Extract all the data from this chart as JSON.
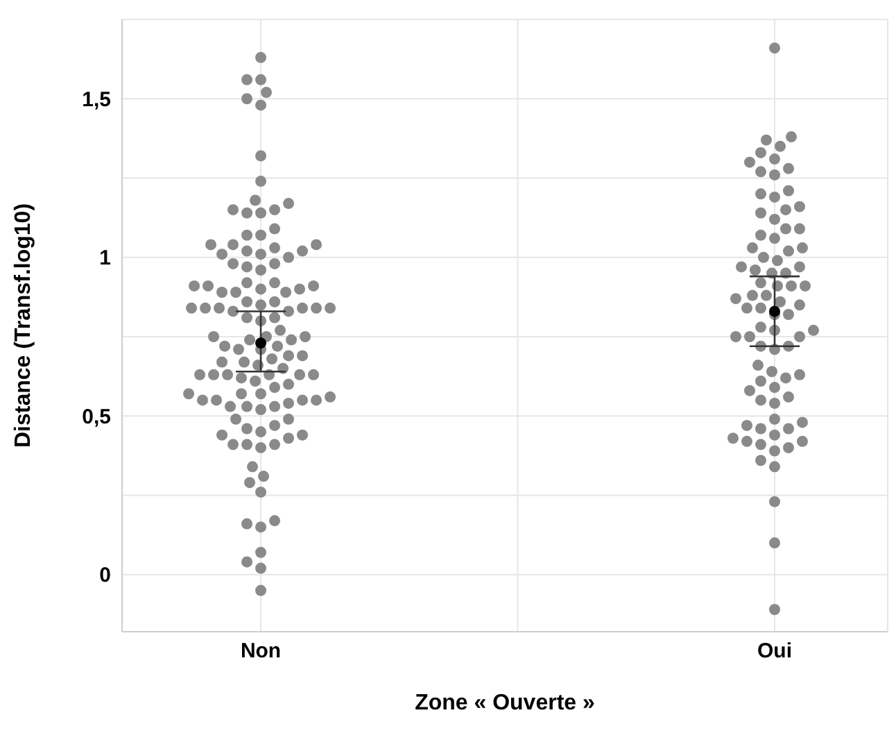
{
  "chart_data": {
    "type": "scatter",
    "xlabel": "Zone « Ouverte »",
    "ylabel": "Distance (Transf.log10)",
    "categories": [
      "Non",
      "Oui"
    ],
    "ylim": [
      -0.18,
      1.75
    ],
    "yticks": [
      0,
      {
        "value": 0.25,
        "label": null
      },
      {
        "value": 0.5,
        "label": "0,5"
      },
      {
        "value": 0.75,
        "label": null
      },
      {
        "value": 1,
        "label": "1"
      },
      {
        "value": 1.25,
        "label": null
      },
      {
        "value": 1.5,
        "label": "1,5"
      },
      {
        "value": 1.75,
        "label": null
      }
    ],
    "grid": true,
    "legend": false,
    "marker": "circle",
    "series": [
      {
        "color": "#8a8a8a",
        "x": [
          "Non",
          "Non",
          "Non",
          "Non",
          "Non",
          "Non",
          "Non",
          "Non",
          "Non",
          "Non",
          "Non",
          "Non",
          "Non",
          "Non",
          "Non",
          "Non",
          "Non",
          "Non",
          "Non",
          "Non",
          "Non",
          "Non",
          "Non",
          "Non",
          "Non",
          "Non",
          "Non",
          "Non",
          "Non",
          "Non",
          "Non",
          "Non",
          "Non",
          "Non",
          "Non",
          "Non",
          "Non",
          "Non",
          "Non",
          "Non",
          "Non",
          "Non",
          "Non",
          "Non",
          "Non",
          "Non",
          "Non",
          "Non",
          "Non",
          "Non",
          "Non",
          "Non",
          "Non",
          "Non",
          "Non",
          "Non",
          "Non",
          "Non",
          "Non",
          "Non",
          "Non",
          "Non",
          "Non",
          "Non",
          "Non",
          "Non",
          "Non",
          "Non",
          "Non",
          "Non",
          "Non",
          "Non",
          "Non",
          "Non",
          "Non",
          "Non",
          "Non",
          "Non",
          "Non",
          "Non",
          "Non",
          "Non",
          "Non",
          "Non",
          "Non",
          "Non",
          "Non",
          "Non",
          "Non",
          "Non",
          "Non",
          "Non",
          "Non",
          "Non",
          "Non",
          "Non",
          "Non",
          "Non",
          "Non",
          "Non",
          "Non",
          "Non",
          "Non",
          "Non",
          "Non",
          "Non",
          "Non",
          "Non",
          "Non",
          "Non",
          "Non",
          "Non",
          "Non",
          "Non",
          "Non",
          "Non",
          "Non",
          "Oui",
          "Oui",
          "Oui",
          "Oui",
          "Oui",
          "Oui",
          "Oui",
          "Oui",
          "Oui",
          "Oui",
          "Oui",
          "Oui",
          "Oui",
          "Oui",
          "Oui",
          "Oui",
          "Oui",
          "Oui",
          "Oui",
          "Oui",
          "Oui",
          "Oui",
          "Oui",
          "Oui",
          "Oui",
          "Oui",
          "Oui",
          "Oui",
          "Oui",
          "Oui",
          "Oui",
          "Oui",
          "Oui",
          "Oui",
          "Oui",
          "Oui",
          "Oui",
          "Oui",
          "Oui",
          "Oui",
          "Oui",
          "Oui",
          "Oui",
          "Oui",
          "Oui",
          "Oui",
          "Oui",
          "Oui",
          "Oui",
          "Oui",
          "Oui",
          "Oui",
          "Oui",
          "Oui",
          "Oui",
          "Oui",
          "Oui",
          "Oui",
          "Oui",
          "Oui",
          "Oui",
          "Oui",
          "Oui",
          "Oui",
          "Oui",
          "Oui",
          "Oui",
          "Oui",
          "Oui",
          "Oui",
          "Oui",
          "Oui",
          "Oui",
          "Oui",
          "Oui",
          "Oui",
          "Oui",
          "Oui",
          "Oui",
          "Oui"
        ],
        "values": [
          1.17,
          1.18,
          1.14,
          1.14,
          1.15,
          1.15,
          1.07,
          1.03,
          1.04,
          1.01,
          1.04,
          1.07,
          1.04,
          1.01,
          1.02,
          1.09,
          1.02,
          1.24,
          1.32,
          1.5,
          1.48,
          1.56,
          1.63,
          1.56,
          1.52,
          1.0,
          0.98,
          0.98,
          0.96,
          0.97,
          0.89,
          0.9,
          0.89,
          0.91,
          0.92,
          0.92,
          0.9,
          0.91,
          0.89,
          0.91,
          0.84,
          0.84,
          0.84,
          0.81,
          0.85,
          0.83,
          0.81,
          0.84,
          0.84,
          0.86,
          0.86,
          0.84,
          0.8,
          0.83,
          0.75,
          0.77,
          0.75,
          0.74,
          0.72,
          0.71,
          0.72,
          0.74,
          0.75,
          0.71,
          0.69,
          0.67,
          0.68,
          0.67,
          0.63,
          0.6,
          0.62,
          0.59,
          0.57,
          0.56,
          0.57,
          0.54,
          0.53,
          0.55,
          0.52,
          0.53,
          0.65,
          0.63,
          0.63,
          0.63,
          0.69,
          0.66,
          0.63,
          0.63,
          0.61,
          0.57,
          0.55,
          0.55,
          0.55,
          0.53,
          0.49,
          0.49,
          0.47,
          0.45,
          0.46,
          0.41,
          0.41,
          0.41,
          0.4,
          0.44,
          0.43,
          0.44,
          0.34,
          0.26,
          0.31,
          0.29,
          0.17,
          0.15,
          0.16,
          0.07,
          0.04,
          0.02,
          -0.05,
          1.66,
          1.38,
          1.37,
          1.33,
          1.35,
          1.27,
          1.28,
          1.3,
          1.31,
          1.26,
          1.21,
          1.2,
          1.19,
          1.15,
          1.16,
          1.14,
          1.12,
          1.09,
          1.06,
          1.09,
          1.07,
          1.03,
          1.03,
          1.02,
          1.0,
          0.99,
          0.96,
          0.97,
          0.97,
          0.95,
          0.95,
          0.91,
          0.91,
          0.88,
          0.92,
          0.91,
          0.88,
          0.85,
          0.84,
          0.87,
          0.86,
          0.84,
          0.82,
          0.82,
          0.77,
          0.75,
          0.75,
          0.72,
          0.72,
          0.75,
          0.78,
          0.71,
          0.77,
          0.66,
          0.63,
          0.64,
          0.59,
          0.61,
          0.58,
          0.54,
          0.56,
          0.62,
          0.55,
          0.49,
          0.44,
          0.43,
          0.42,
          0.42,
          0.36,
          0.46,
          0.41,
          0.39,
          0.48,
          0.47,
          0.46,
          0.4,
          0.34,
          0.23,
          0.1,
          -0.11
        ]
      },
      {
        "color": "#000000",
        "x": [
          "Non",
          "Oui"
        ],
        "values": [
          0.73,
          0.83
        ],
        "errors": [
          [
            0.64,
            0.83
          ],
          [
            0.72,
            0.94
          ]
        ]
      }
    ]
  }
}
